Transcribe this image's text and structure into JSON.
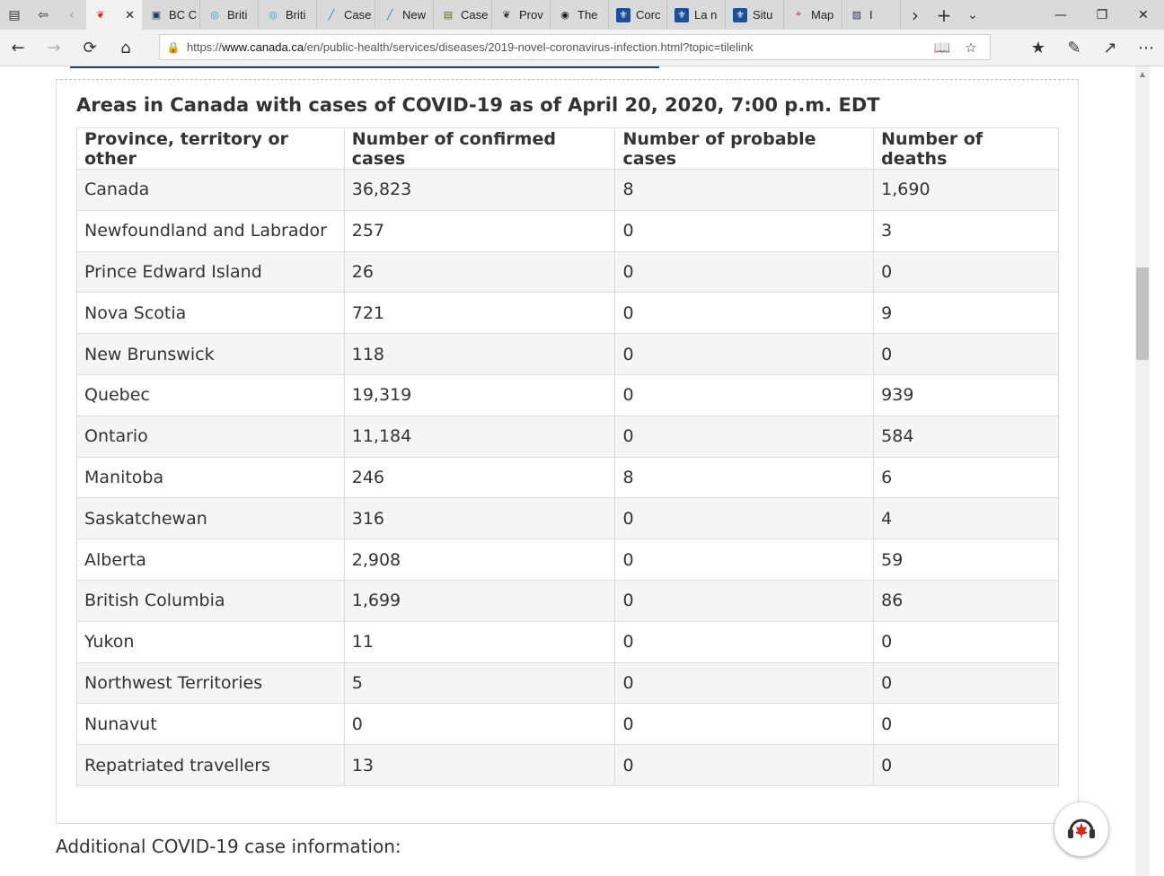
{
  "browser": {
    "tabs": [
      {
        "label": "",
        "icon": "maple-leaf-icon",
        "active": true
      },
      {
        "label": "BC C",
        "icon": "bc-cdc-icon"
      },
      {
        "label": "Briti",
        "icon": "bc-gov-icon"
      },
      {
        "label": "Briti",
        "icon": "bc-gov-icon"
      },
      {
        "label": "Case",
        "icon": "chart-line-icon"
      },
      {
        "label": "New",
        "icon": "chart-line-icon"
      },
      {
        "label": "Case",
        "icon": "document-icon"
      },
      {
        "label": "Prov",
        "icon": "animal-icon"
      },
      {
        "label": "The",
        "icon": "globe-icon"
      },
      {
        "label": "Corc",
        "icon": "fleur-de-lis-icon"
      },
      {
        "label": "La n",
        "icon": "fleur-de-lis-icon"
      },
      {
        "label": "Situ",
        "icon": "fleur-de-lis-icon"
      },
      {
        "label": "Map",
        "icon": "map-pin-icon"
      },
      {
        "label": "I",
        "icon": "image-icon"
      }
    ],
    "url_prefix": "https://",
    "url_host": "www.canada.ca",
    "url_path": "/en/public-health/services/diseases/2019-novel-coronavirus-infection.html?topic=tilelink"
  },
  "page": {
    "caption": "Areas in Canada with cases of COVID-19 as of April 20, 2020, 7:00 p.m. EDT",
    "headers": [
      "Province, territory or other",
      "Number of confirmed cases",
      "Number of probable cases",
      "Number of deaths"
    ],
    "rows": [
      [
        "Canada",
        "36,823",
        "8",
        "1,690"
      ],
      [
        "Newfoundland and Labrador",
        "257",
        "0",
        "3"
      ],
      [
        "Prince Edward Island",
        "26",
        "0",
        "0"
      ],
      [
        "Nova Scotia",
        "721",
        "0",
        "9"
      ],
      [
        "New Brunswick",
        "118",
        "0",
        "0"
      ],
      [
        "Quebec",
        "19,319",
        "0",
        "939"
      ],
      [
        "Ontario",
        "11,184",
        "0",
        "584"
      ],
      [
        "Manitoba",
        "246",
        "8",
        "6"
      ],
      [
        "Saskatchewan",
        "316",
        "0",
        "4"
      ],
      [
        "Alberta",
        "2,908",
        "0",
        "59"
      ],
      [
        "British Columbia",
        "1,699",
        "0",
        "86"
      ],
      [
        "Yukon",
        "11",
        "0",
        "0"
      ],
      [
        "Northwest Territories",
        "5",
        "0",
        "0"
      ],
      [
        "Nunavut",
        "0",
        "0",
        "0"
      ],
      [
        "Repatriated travellers",
        "13",
        "0",
        "0"
      ]
    ],
    "additional": "Additional COVID-19 case information:"
  },
  "colors": {
    "link_underline": "#284162",
    "maple_red": "#d52b1e",
    "row_stripe": "#f5f5f5",
    "text": "#333333"
  }
}
